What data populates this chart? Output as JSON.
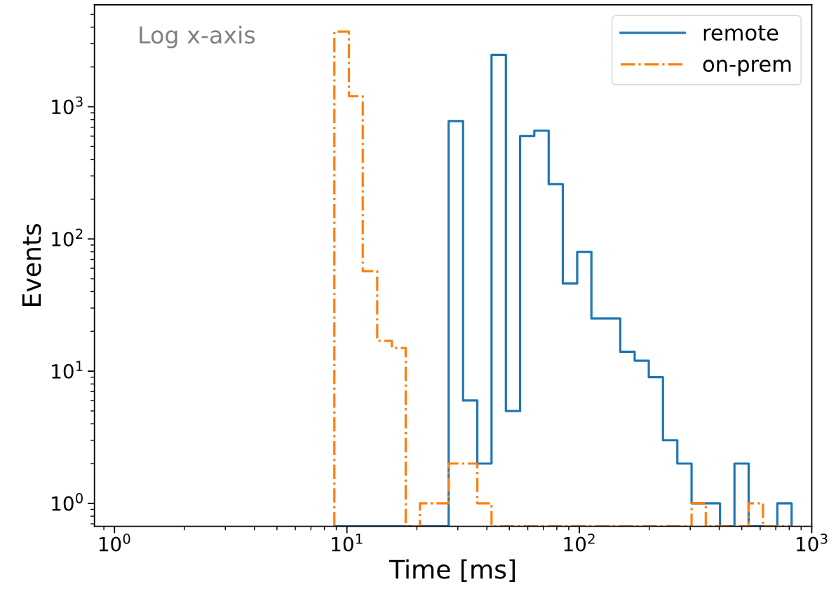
{
  "chart_data": {
    "type": "histogram",
    "xlabel": "Time [ms]",
    "ylabel": "Events",
    "annotations": [
      "Log x-axis"
    ],
    "log": "xy",
    "grid": false,
    "legend": "top right",
    "tick_labels": true,
    "xlim": [
      0.82,
      1000
    ],
    "ylim": [
      0.67,
      5900
    ],
    "xticks": [
      {
        "value": 1,
        "label": "10$^{0}$"
      },
      {
        "value": 10,
        "label": "10$^{1}$"
      },
      {
        "value": 100,
        "label": "10$^{2}$"
      },
      {
        "value": 1000,
        "label": "10$^{3}$"
      }
    ],
    "yticks": [
      {
        "value": 1,
        "label": "10$^{0}$"
      },
      {
        "value": 10,
        "label": "10$^{1}$"
      },
      {
        "value": 100,
        "label": "10$^{2}$"
      },
      {
        "value": 1000,
        "label": "10$^{3}$"
      }
    ],
    "bins": [
      8.83,
      10.2,
      11.7,
      13.5,
      15.6,
      17.9,
      20.6,
      23.8,
      27.4,
      31.6,
      36.4,
      41.9,
      48.3,
      55.6,
      64.0,
      73.8,
      84.9,
      97.9,
      112.7,
      130,
      150,
      173,
      199,
      229,
      264,
      304,
      350,
      403,
      465,
      535,
      617,
      711,
      819
    ],
    "series": [
      {
        "name": "remote",
        "color": "#1f77b4",
        "line_style": "solid",
        "values": [
          null,
          null,
          null,
          null,
          null,
          null,
          null,
          null,
          780,
          6,
          2,
          2470,
          5,
          600,
          660,
          260,
          46,
          80,
          25,
          25,
          14,
          12,
          9,
          3,
          2,
          1,
          1,
          null,
          2,
          null,
          null,
          1
        ]
      },
      {
        "name": "on-prem",
        "color": "#ff7f0e",
        "line_style": "dashdot",
        "values": [
          3700,
          1200,
          57,
          17,
          15,
          null,
          1,
          1,
          2,
          2,
          1,
          null,
          null,
          null,
          null,
          null,
          null,
          null,
          null,
          null,
          null,
          null,
          null,
          null,
          null,
          1,
          null,
          null,
          null,
          1,
          null,
          null
        ]
      }
    ]
  }
}
